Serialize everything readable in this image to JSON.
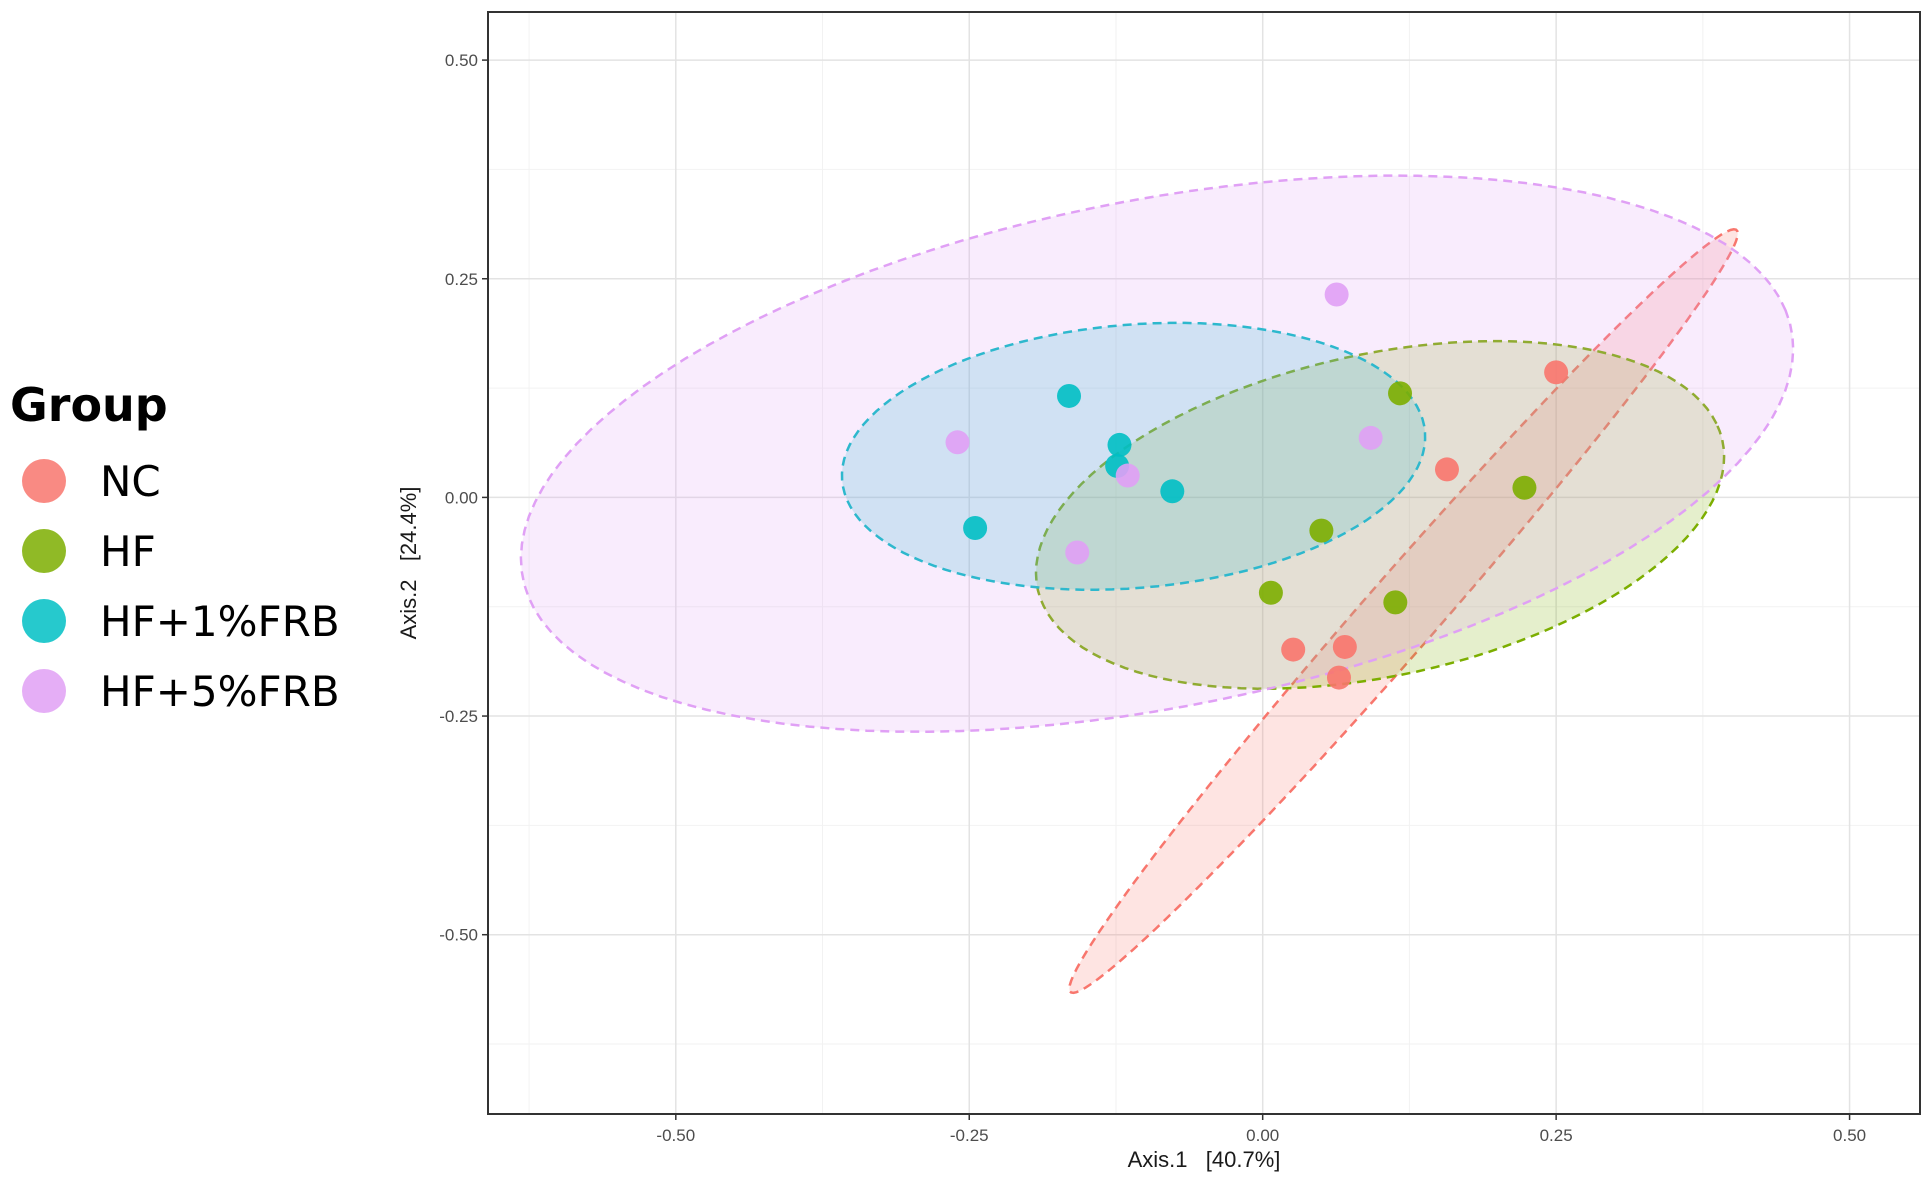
{
  "chart_data": {
    "type": "scatter",
    "subtype": "PCoA ordination with 95% confidence ellipses",
    "xlabel": "Axis.1   [40.7%]",
    "ylabel": "Axis.2   [24.4%]",
    "xlim": [
      -0.66,
      0.56
    ],
    "ylim": [
      -0.705,
      0.555
    ],
    "xticks": [
      -0.5,
      -0.25,
      0.0,
      0.25,
      0.5
    ],
    "xtick_labels": [
      "-0.50",
      "-0.25",
      "0.00",
      "0.25",
      "0.50"
    ],
    "yticks": [
      0.5,
      0.25,
      0.0,
      -0.25,
      -0.5
    ],
    "ytick_labels": [
      "0.50",
      "0.25",
      "0.00",
      "-0.25",
      "-0.50"
    ],
    "grid": true,
    "legend_title": "Group",
    "legend_position": "left",
    "series": [
      {
        "name": "NC",
        "color": "#F8766D",
        "points": [
          [
            0.25,
            0.143
          ],
          [
            0.157,
            0.032
          ],
          [
            0.026,
            -0.174
          ],
          [
            0.07,
            -0.171
          ],
          [
            0.065,
            -0.206
          ]
        ],
        "ellipse": {
          "center": [
            0.12,
            -0.13
          ],
          "semi_major": 0.52,
          "semi_minor": 0.035,
          "angle_deg": 57
        }
      },
      {
        "name": "HF",
        "color": "#7CAE00",
        "points": [
          [
            0.117,
            0.119
          ],
          [
            0.223,
            0.011
          ],
          [
            0.05,
            -0.038
          ],
          [
            0.007,
            -0.109
          ],
          [
            0.113,
            -0.12
          ]
        ],
        "ellipse": {
          "center": [
            0.1,
            -0.02
          ],
          "semi_major": 0.305,
          "semi_minor": 0.18,
          "angle_deg": 20
        }
      },
      {
        "name": "HF+1%FRB",
        "color": "#00BFC4",
        "points": [
          [
            -0.165,
            0.116
          ],
          [
            -0.122,
            0.06
          ],
          [
            -0.124,
            0.036
          ],
          [
            -0.077,
            0.007
          ],
          [
            -0.245,
            -0.035
          ]
        ],
        "ellipse": {
          "center": [
            -0.11,
            0.047
          ],
          "semi_major": 0.25,
          "semi_minor": 0.15,
          "angle_deg": 8
        }
      },
      {
        "name": "HF+5%FRB",
        "color": "#E0A0F5",
        "points": [
          [
            0.063,
            0.232
          ],
          [
            0.092,
            0.068
          ],
          [
            -0.26,
            0.063
          ],
          [
            -0.115,
            0.025
          ],
          [
            -0.158,
            -0.063
          ]
        ],
        "ellipse": {
          "center": [
            -0.09,
            0.05
          ],
          "semi_major": 0.56,
          "semi_minor": 0.285,
          "angle_deg": 17
        }
      }
    ]
  }
}
